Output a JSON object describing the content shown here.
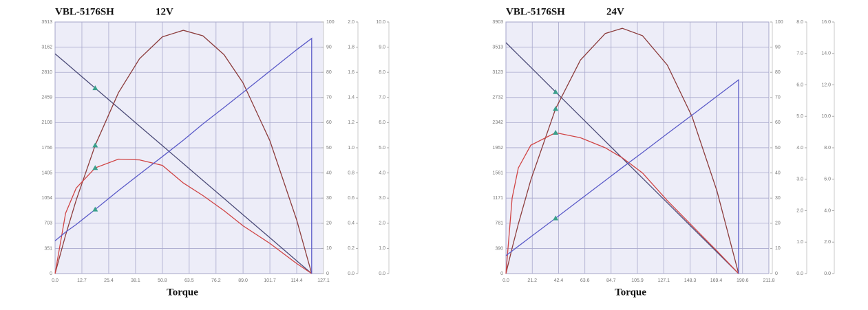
{
  "chart_data": [
    {
      "type": "line",
      "title": "VBL-5176SH",
      "subtitle": "12V",
      "x_label": "Torque",
      "x": [
        0,
        5,
        10,
        19,
        30,
        40,
        50.8,
        60.7,
        70,
        80,
        89,
        101.7,
        114.4,
        121.5,
        121.5
      ],
      "xlim": [
        0,
        127.1
      ],
      "xticks": [
        {
          "value": 0,
          "label": "0.0"
        },
        12.7,
        25.4,
        38.1,
        50.8,
        63.5,
        76.2,
        {
          "value": 89,
          "label": "89.0"
        },
        101.7,
        114.4,
        127.1
      ],
      "ylim": [
        0,
        3513
      ],
      "yticks": [
        0,
        351,
        703,
        1054,
        1405,
        1756,
        2108,
        2459,
        2810,
        3162,
        3513
      ],
      "y2lim": [
        0,
        100
      ],
      "y2ticks": [
        0,
        10,
        20,
        30,
        40,
        50,
        60,
        70,
        80,
        90,
        100
      ],
      "y3lim": [
        0,
        2
      ],
      "y3ticks": [
        {
          "value": 0,
          "label": "0.0"
        },
        0.2,
        0.4,
        0.6,
        0.8,
        {
          "value": 1,
          "label": "1.0"
        },
        1.2,
        1.4,
        1.6,
        1.8,
        {
          "value": 2,
          "label": "2.0"
        }
      ],
      "y4lim": [
        0,
        10
      ],
      "y4ticks": [
        {
          "value": 0,
          "label": "0.0"
        },
        {
          "value": 1,
          "label": "1.0"
        },
        {
          "value": 2,
          "label": "2.0"
        },
        {
          "value": 3,
          "label": "3.0"
        },
        {
          "value": 4,
          "label": "4.0"
        },
        {
          "value": 5,
          "label": "5.0"
        },
        {
          "value": 6,
          "label": "6.0"
        },
        {
          "value": 7,
          "label": "7.0"
        },
        {
          "value": 8,
          "label": "8.0"
        },
        {
          "value": 9,
          "label": "9.0"
        },
        {
          "value": 10,
          "label": "10.0"
        }
      ],
      "grid": true,
      "marker_index": 3,
      "marker_color": "#3aa08c",
      "series": [
        {
          "color": "#4b4b78",
          "axis": "y",
          "values": [
            3070,
            2944,
            2817,
            2590,
            2312,
            2059,
            1786,
            1536,
            1301,
            1049,
            821,
            500,
            179,
            0,
            null
          ]
        },
        {
          "color": "#8c3c3c",
          "axis": "y4",
          "values": [
            0,
            1.53,
            2.92,
            5.1,
            7.19,
            8.54,
            9.41,
            9.67,
            9.45,
            8.7,
            7.58,
            5.28,
            2.13,
            0,
            null
          ]
        },
        {
          "color": "#d04444",
          "axis": "y2",
          "values": [
            0,
            24,
            34,
            42,
            45.5,
            45.2,
            43,
            36,
            31,
            25,
            19,
            12,
            4,
            0,
            null
          ]
        },
        {
          "color": "#5a5ac8",
          "axis": "y3",
          "values": [
            0.26,
            0.33,
            0.39,
            0.51,
            0.66,
            0.79,
            0.93,
            1.06,
            1.19,
            1.32,
            1.44,
            1.61,
            1.78,
            1.87,
            0
          ]
        }
      ]
    },
    {
      "type": "line",
      "title": "VBL-5176SH",
      "subtitle": "24V",
      "x_label": "Torque",
      "x": [
        0,
        5,
        10,
        20,
        40,
        60,
        80,
        93.7,
        110,
        130,
        150,
        170,
        187.4,
        187.4
      ],
      "xlim": [
        0,
        211.8
      ],
      "xticks": [
        {
          "value": 0,
          "label": "0.0"
        },
        21.2,
        42.4,
        63.6,
        84.7,
        105.9,
        127.1,
        148.3,
        169.4,
        190.6,
        211.8
      ],
      "ylim": [
        0,
        3903
      ],
      "yticks": [
        0,
        390,
        781,
        1171,
        1561,
        1952,
        2342,
        2732,
        3123,
        3513,
        3903
      ],
      "y2lim": [
        0,
        100
      ],
      "y2ticks": [
        0,
        10,
        20,
        30,
        40,
        50,
        60,
        70,
        80,
        90,
        100
      ],
      "y3lim": [
        0,
        8
      ],
      "y3ticks": [
        {
          "value": 0,
          "label": "0.0"
        },
        {
          "value": 1,
          "label": "1.0"
        },
        {
          "value": 2,
          "label": "2.0"
        },
        {
          "value": 3,
          "label": "3.0"
        },
        {
          "value": 4,
          "label": "4.0"
        },
        {
          "value": 5,
          "label": "5.0"
        },
        {
          "value": 6,
          "label": "6.0"
        },
        {
          "value": 7,
          "label": "7.0"
        },
        {
          "value": 8,
          "label": "8.0"
        }
      ],
      "y4lim": [
        0,
        16
      ],
      "y4ticks": [
        {
          "value": 0,
          "label": "0.0"
        },
        {
          "value": 2,
          "label": "2.0"
        },
        {
          "value": 4,
          "label": "4.0"
        },
        {
          "value": 6,
          "label": "6.0"
        },
        {
          "value": 8,
          "label": "8.0"
        },
        {
          "value": 10,
          "label": "10.0"
        },
        {
          "value": 12,
          "label": "12.0"
        },
        {
          "value": 14,
          "label": "14.0"
        },
        {
          "value": 16,
          "label": "16.0"
        }
      ],
      "grid": true,
      "marker_index": 4,
      "marker_color": "#3aa08c",
      "series": [
        {
          "color": "#4b4b78",
          "axis": "y",
          "values": [
            3583,
            3487,
            3392,
            3201,
            2818,
            2436,
            2054,
            1792,
            1480,
            1097,
            715,
            333,
            0,
            null
          ]
        },
        {
          "color": "#8c3c3c",
          "axis": "y4",
          "values": [
            0,
            1.62,
            3.15,
            5.95,
            10.48,
            13.58,
            15.27,
            15.6,
            15.13,
            13.26,
            9.97,
            5.25,
            0,
            null
          ]
        },
        {
          "color": "#d04444",
          "axis": "y2",
          "values": [
            0,
            30,
            42,
            51,
            56,
            54,
            50,
            46,
            40,
            29,
            19,
            9,
            0,
            null
          ]
        },
        {
          "color": "#5a5ac8",
          "axis": "y3",
          "values": [
            0.57,
            0.72,
            0.87,
            1.17,
            1.76,
            2.36,
            2.96,
            3.37,
            3.85,
            4.45,
            5.04,
            5.64,
            6.16,
            0
          ]
        }
      ]
    }
  ]
}
